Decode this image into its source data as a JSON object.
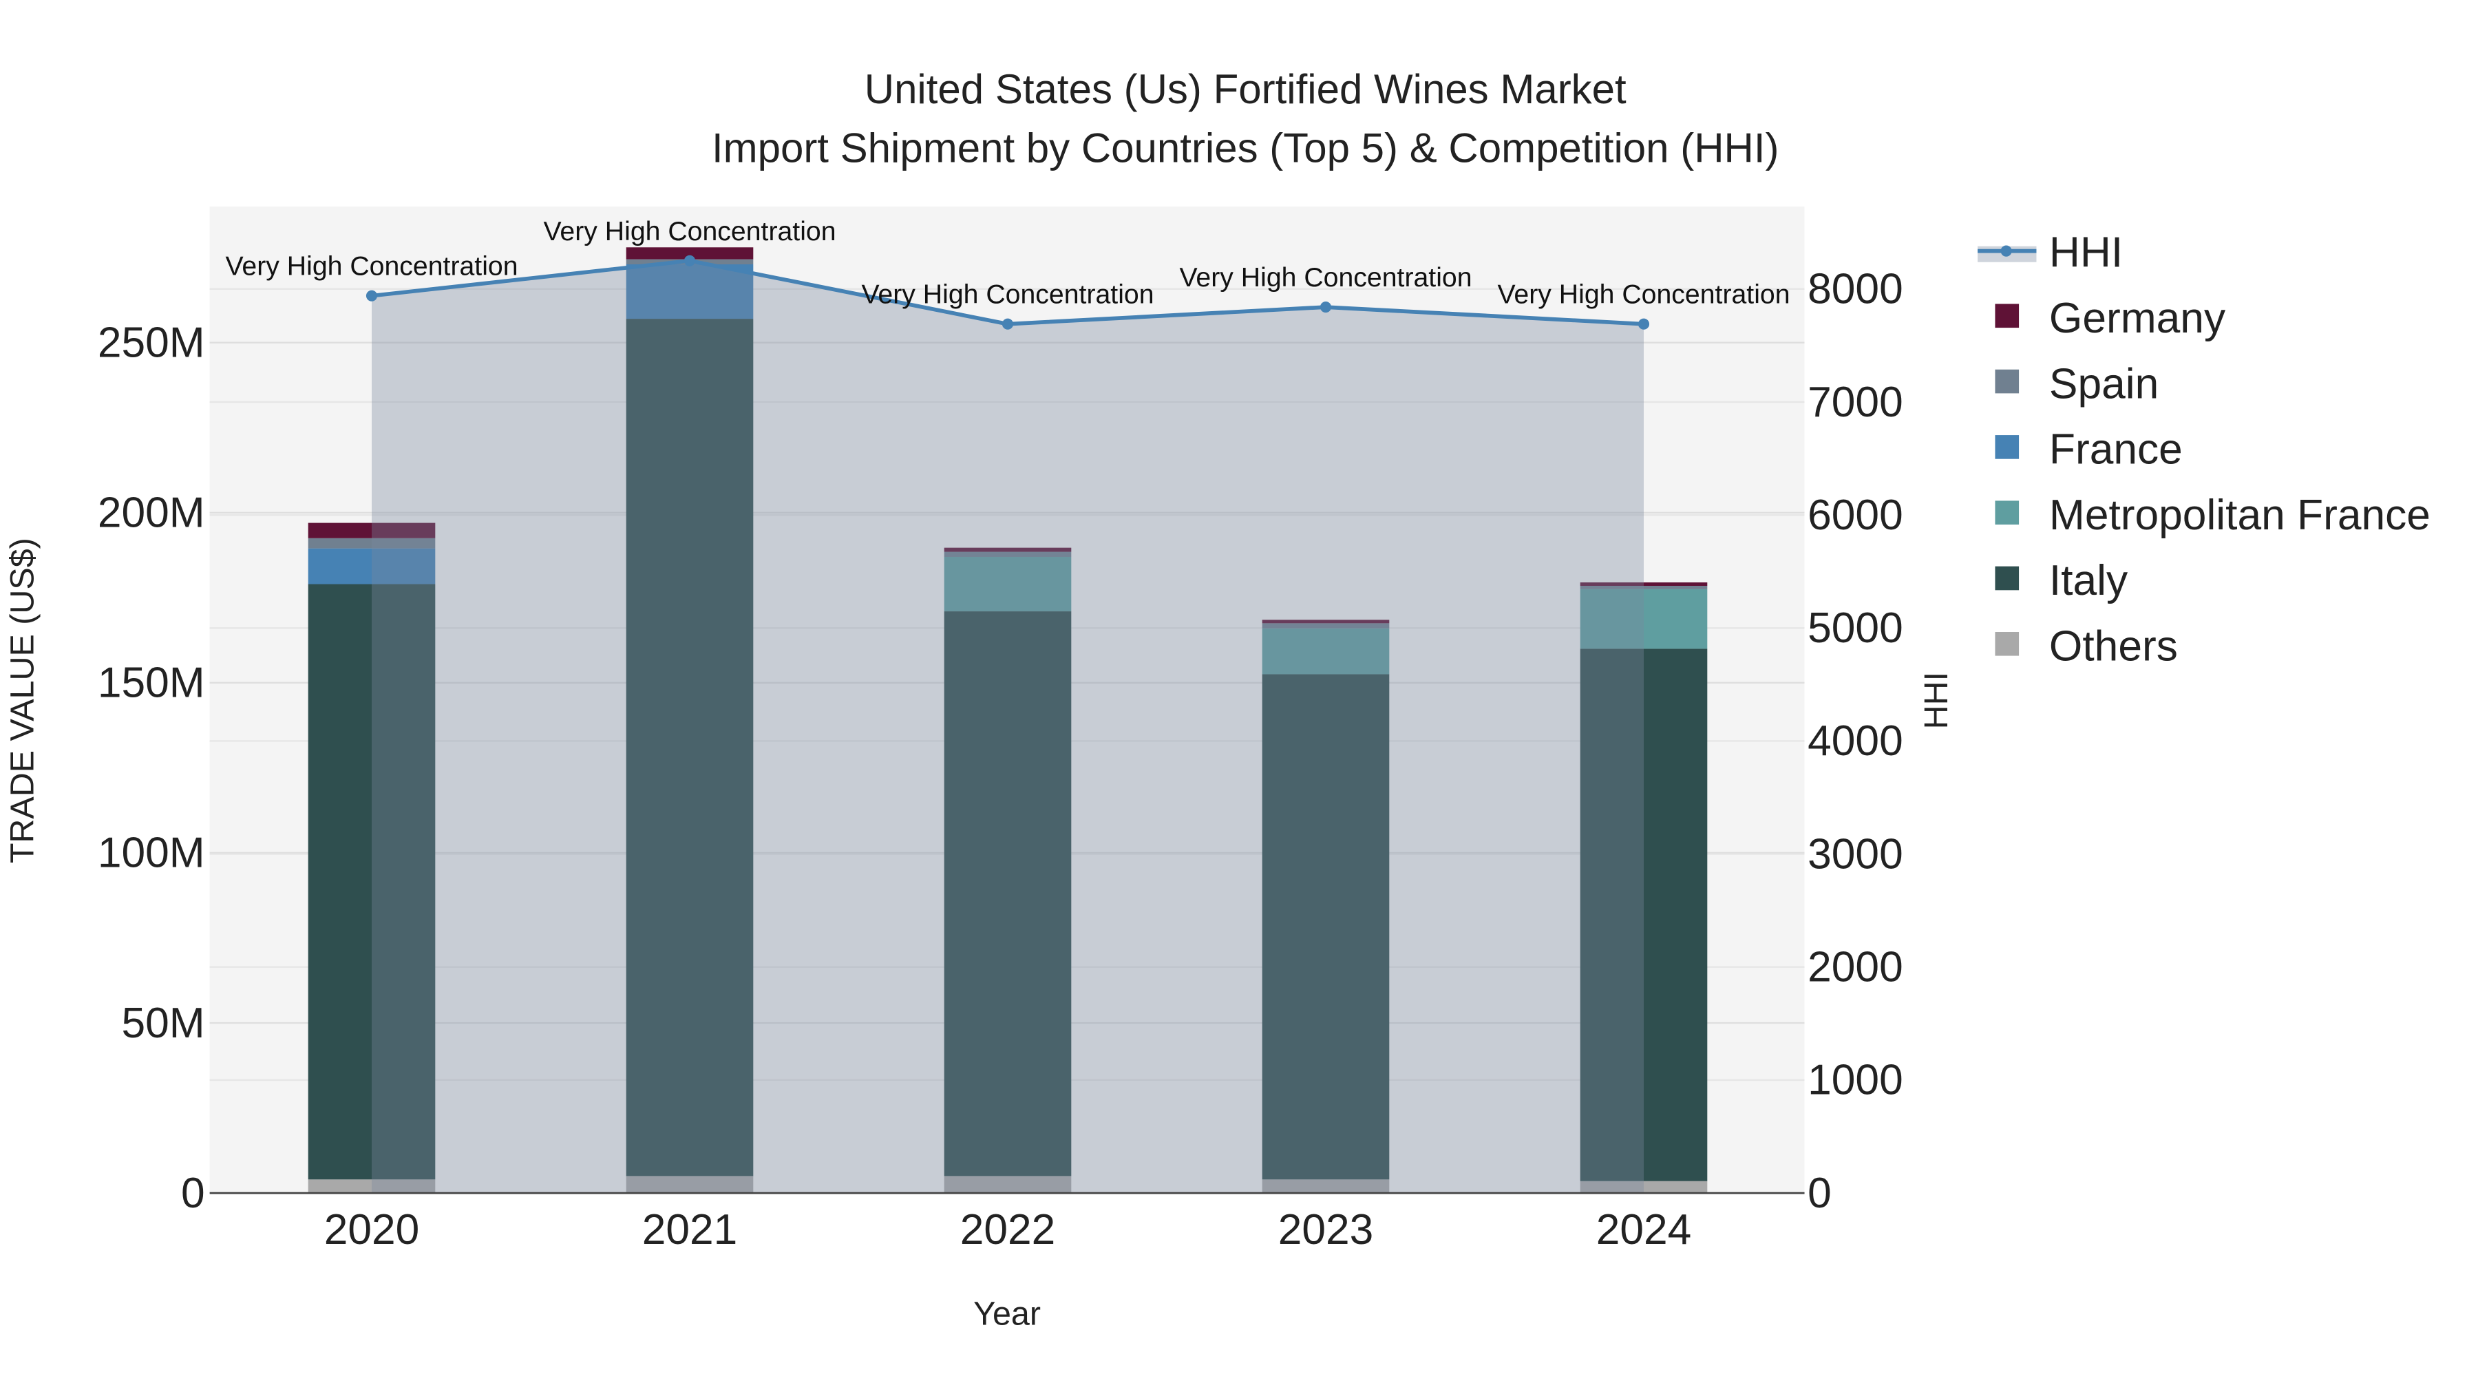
{
  "chart_data": {
    "type": "bar",
    "title": "United States (Us) Fortified Wines Market",
    "subtitle": "Import Shipment by Countries (Top 5) & Competition (HHI)",
    "xlabel": "Year",
    "ylabel": "TRADE VALUE (US$)",
    "y2label": "HHI",
    "categories": [
      "2020",
      "2021",
      "2022",
      "2023",
      "2024"
    ],
    "ylim": [
      0,
      290000000
    ],
    "y2lim": [
      0,
      8730
    ],
    "yticks": [
      {
        "v": 0,
        "label": "0"
      },
      {
        "v": 50000000,
        "label": "50M"
      },
      {
        "v": 100000000,
        "label": "100M"
      },
      {
        "v": 150000000,
        "label": "150M"
      },
      {
        "v": 200000000,
        "label": "200M"
      },
      {
        "v": 250000000,
        "label": "250M"
      }
    ],
    "y2ticks": [
      {
        "v": 0,
        "label": "0"
      },
      {
        "v": 1000,
        "label": "1000"
      },
      {
        "v": 2000,
        "label": "2000"
      },
      {
        "v": 3000,
        "label": "3000"
      },
      {
        "v": 4000,
        "label": "4000"
      },
      {
        "v": 5000,
        "label": "5000"
      },
      {
        "v": 6000,
        "label": "6000"
      },
      {
        "v": 7000,
        "label": "7000"
      },
      {
        "v": 8000,
        "label": "8000"
      }
    ],
    "series": [
      {
        "name": "Others",
        "color": "#a9a9a9",
        "values": [
          4000000,
          5000000,
          5000000,
          4000000,
          3500000
        ]
      },
      {
        "name": "Italy",
        "color": "#2f4f4f",
        "values": [
          175000000,
          252000000,
          166000000,
          148500000,
          156500000
        ]
      },
      {
        "name": "Metropolitan France",
        "color": "#5f9ea0",
        "values": [
          0,
          0,
          16000000,
          13500000,
          17500000
        ]
      },
      {
        "name": "France",
        "color": "#4682b4",
        "values": [
          10500000,
          16000000,
          0,
          0,
          0
        ]
      },
      {
        "name": "Spain",
        "color": "#708090",
        "values": [
          3000000,
          1500000,
          1500000,
          1500000,
          1000000
        ]
      },
      {
        "name": "Germany",
        "color": "#5f1236",
        "values": [
          4500000,
          3500000,
          1200000,
          1000000,
          1000000
        ]
      }
    ],
    "hhi": {
      "name": "HHI",
      "color": "#4682b4",
      "values": [
        7940,
        8250,
        7690,
        7840,
        7690
      ]
    },
    "annotations": [
      "Very High Concentration",
      "Very High Concentration",
      "Very High Concentration",
      "Very High Concentration",
      "Very High Concentration"
    ],
    "legend": [
      "HHI",
      "Germany",
      "Spain",
      "France",
      "Metropolitan France",
      "Italy",
      "Others"
    ],
    "legend_placement": "top-right",
    "grid": true
  }
}
